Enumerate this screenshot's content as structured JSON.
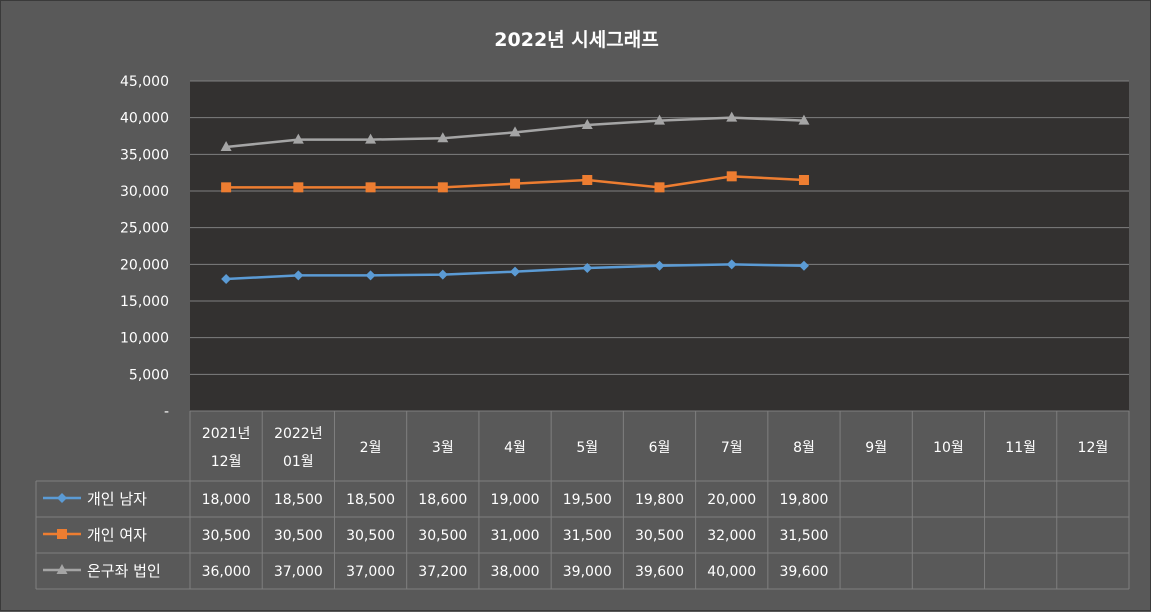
{
  "chart_data": {
    "type": "line",
    "title": "2022년 시세그래프",
    "categories": [
      [
        "2021년",
        "12월"
      ],
      [
        "2022년",
        "01월"
      ],
      [
        "2월"
      ],
      [
        "3월"
      ],
      [
        "4월"
      ],
      [
        "5월"
      ],
      [
        "6월"
      ],
      [
        "7월"
      ],
      [
        "8월"
      ],
      [
        "9월"
      ],
      [
        "10월"
      ],
      [
        "11월"
      ],
      [
        "12월"
      ]
    ],
    "ylim": [
      0,
      45000
    ],
    "y_ticks": [
      "-",
      "5,000",
      "10,000",
      "15,000",
      "20,000",
      "25,000",
      "30,000",
      "35,000",
      "40,000",
      "45,000"
    ],
    "grid": true,
    "legend": "data-table",
    "series": [
      {
        "name": "개인 남자",
        "color": "#5b9bd5",
        "marker": "diamond",
        "values": [
          18000,
          18500,
          18500,
          18600,
          19000,
          19500,
          19800,
          20000,
          19800,
          null,
          null,
          null,
          null
        ],
        "labels": [
          "18,000",
          "18,500",
          "18,500",
          "18,600",
          "19,000",
          "19,500",
          "19,800",
          "20,000",
          "19,800",
          "",
          "",
          "",
          ""
        ]
      },
      {
        "name": "개인 여자",
        "color": "#ed7d31",
        "marker": "square",
        "values": [
          30500,
          30500,
          30500,
          30500,
          31000,
          31500,
          30500,
          32000,
          31500,
          null,
          null,
          null,
          null
        ],
        "labels": [
          "30,500",
          "30,500",
          "30,500",
          "30,500",
          "31,000",
          "31,500",
          "30,500",
          "32,000",
          "31,500",
          "",
          "",
          "",
          ""
        ]
      },
      {
        "name": "온구좌 법인",
        "color": "#a5a5a5",
        "marker": "triangle",
        "values": [
          36000,
          37000,
          37000,
          37200,
          38000,
          39000,
          39600,
          40000,
          39600,
          null,
          null,
          null,
          null
        ],
        "labels": [
          "36,000",
          "37,000",
          "37,000",
          "37,200",
          "38,000",
          "39,000",
          "39,600",
          "40,000",
          "39,600",
          "",
          "",
          "",
          ""
        ]
      }
    ]
  },
  "colors": {
    "background": "#595959",
    "plot_background": "#333130",
    "grid": "#7f7f7f",
    "table_border": "#7f7f7f",
    "text": "#ffffff"
  }
}
